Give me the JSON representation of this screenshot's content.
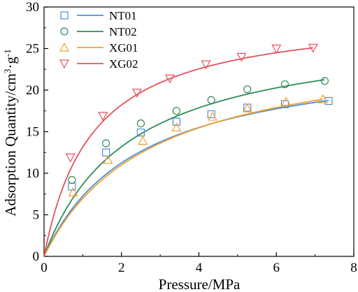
{
  "chart_data": {
    "type": "scatter",
    "xlabel": "Pressure/MPa",
    "ylabel_parts": [
      "Adsorption Quantity/cm",
      "3",
      "·g",
      "-1"
    ],
    "xlim": [
      0,
      8
    ],
    "ylim": [
      0,
      30
    ],
    "xticks": [
      0,
      2,
      4,
      6,
      8
    ],
    "yticks": [
      0,
      5,
      10,
      15,
      20,
      25,
      30
    ],
    "legend_placement": "top-left",
    "grid": false,
    "series": [
      {
        "name": "NT01",
        "color": "#4a90d9",
        "marker": "square",
        "x": [
          0.72,
          1.6,
          2.5,
          3.42,
          4.32,
          5.25,
          6.22,
          7.35
        ],
        "y": [
          8.4,
          12.5,
          14.9,
          16.2,
          17.1,
          17.9,
          18.3,
          18.7
        ],
        "fit_langmuir": {
          "vl": 25.0,
          "pl": 2.45
        }
      },
      {
        "name": "NT02",
        "color": "#2e8b57",
        "marker": "circle",
        "x": [
          0.72,
          1.6,
          2.5,
          3.42,
          4.32,
          5.25,
          6.22,
          7.25
        ],
        "y": [
          9.2,
          13.6,
          16.0,
          17.5,
          18.8,
          20.1,
          20.7,
          21.1
        ],
        "fit_langmuir": {
          "vl": 27.7,
          "pl": 2.2
        }
      },
      {
        "name": "XG01",
        "color": "#f0a030",
        "marker": "triangle-up",
        "x": [
          0.75,
          1.65,
          2.55,
          3.42,
          4.35,
          5.25,
          6.25,
          7.2
        ],
        "y": [
          7.7,
          11.6,
          13.9,
          15.5,
          16.8,
          17.8,
          18.6,
          18.9
        ],
        "fit_langmuir": {
          "vl": 26.1,
          "pl": 2.75
        }
      },
      {
        "name": "XG02",
        "color": "#e8505b",
        "marker": "triangle-down",
        "x": [
          0.68,
          1.52,
          2.4,
          3.25,
          4.18,
          5.1,
          6.0,
          6.95
        ],
        "y": [
          11.9,
          16.9,
          19.7,
          21.4,
          23.1,
          24.0,
          25.0,
          25.1
        ],
        "fit_langmuir": {
          "vl": 29.6,
          "pl": 1.25
        }
      }
    ]
  }
}
